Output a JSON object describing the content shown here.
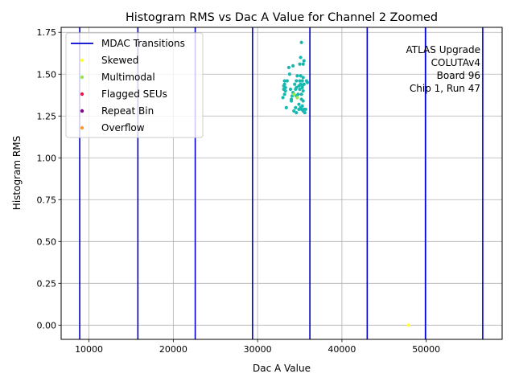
{
  "chart_data": {
    "type": "scatter",
    "title": "Histogram RMS vs Dac A Value for Channel 2 Zoomed",
    "xlabel": "Dac A Value",
    "ylabel": "Histogram RMS",
    "xlim": [
      6700,
      59000
    ],
    "ylim": [
      -0.085,
      1.78
    ],
    "x_ticks": [
      10000,
      20000,
      30000,
      40000,
      50000
    ],
    "x_tick_labels": [
      "10000",
      "20000",
      "30000",
      "40000",
      "50000"
    ],
    "y_ticks": [
      0.0,
      0.25,
      0.5,
      0.75,
      1.0,
      1.25,
      1.5,
      1.75
    ],
    "y_tick_labels": [
      "0.00",
      "0.25",
      "0.50",
      "0.75",
      "1.00",
      "1.25",
      "1.50",
      "1.75"
    ],
    "grid": true,
    "legend_placement": "top-left",
    "transitions": {
      "name": "MDAC Transitions",
      "color": "#0000cd",
      "x": [
        8900,
        15800,
        22600,
        29400,
        36200,
        43000,
        49900,
        56700
      ]
    },
    "series": [
      {
        "name": "",
        "color": "#17b8b0",
        "points": [
          [
            35200,
            1.69
          ],
          [
            35500,
            1.58
          ],
          [
            35100,
            1.6
          ],
          [
            35400,
            1.56
          ],
          [
            35000,
            1.56
          ],
          [
            34200,
            1.55
          ],
          [
            33700,
            1.54
          ],
          [
            33800,
            1.5
          ],
          [
            34700,
            1.49
          ],
          [
            35100,
            1.49
          ],
          [
            35400,
            1.48
          ],
          [
            33200,
            1.46
          ],
          [
            33500,
            1.46
          ],
          [
            34600,
            1.46
          ],
          [
            35000,
            1.46
          ],
          [
            35300,
            1.46
          ],
          [
            35800,
            1.46
          ],
          [
            35900,
            1.45
          ],
          [
            33200,
            1.44
          ],
          [
            34400,
            1.44
          ],
          [
            35100,
            1.44
          ],
          [
            35500,
            1.44
          ],
          [
            33100,
            1.43
          ],
          [
            34900,
            1.43
          ],
          [
            35300,
            1.43
          ],
          [
            33300,
            1.42
          ],
          [
            34600,
            1.42
          ],
          [
            35300,
            1.42
          ],
          [
            33100,
            1.41
          ],
          [
            33900,
            1.41
          ],
          [
            34500,
            1.41
          ],
          [
            35000,
            1.41
          ],
          [
            33300,
            1.4
          ],
          [
            35400,
            1.4
          ],
          [
            34200,
            1.39
          ],
          [
            33200,
            1.38
          ],
          [
            34800,
            1.38
          ],
          [
            35200,
            1.38
          ],
          [
            34100,
            1.37
          ],
          [
            34600,
            1.37
          ],
          [
            33000,
            1.36
          ],
          [
            34000,
            1.35
          ],
          [
            35200,
            1.35
          ],
          [
            34000,
            1.34
          ],
          [
            35400,
            1.34
          ],
          [
            34900,
            1.32
          ],
          [
            35300,
            1.31
          ],
          [
            33400,
            1.3
          ],
          [
            35100,
            1.3
          ],
          [
            34500,
            1.3
          ],
          [
            34900,
            1.29
          ],
          [
            35200,
            1.29
          ],
          [
            35500,
            1.29
          ],
          [
            35700,
            1.29
          ],
          [
            34300,
            1.28
          ],
          [
            35400,
            1.28
          ],
          [
            35600,
            1.27
          ],
          [
            34600,
            1.27
          ]
        ]
      },
      {
        "name": "Skewed",
        "color": "#ffff33",
        "points": [
          [
            47900,
            0.0
          ]
        ]
      },
      {
        "name": "Multimodal",
        "color": "#99e64d",
        "points": [
          [
            34700,
            1.36
          ],
          [
            34300,
            1.38
          ]
        ]
      },
      {
        "name": "Flagged SEUs",
        "color": "#e6194b",
        "points": []
      },
      {
        "name": "Repeat Bin",
        "color": "#8b008b",
        "points": []
      },
      {
        "name": "Overflow",
        "color": "#ff9933",
        "points": []
      }
    ],
    "annotation": [
      "ATLAS Upgrade",
      "COLUTAv4",
      "Board 96",
      "Chip 1, Run 47"
    ]
  }
}
